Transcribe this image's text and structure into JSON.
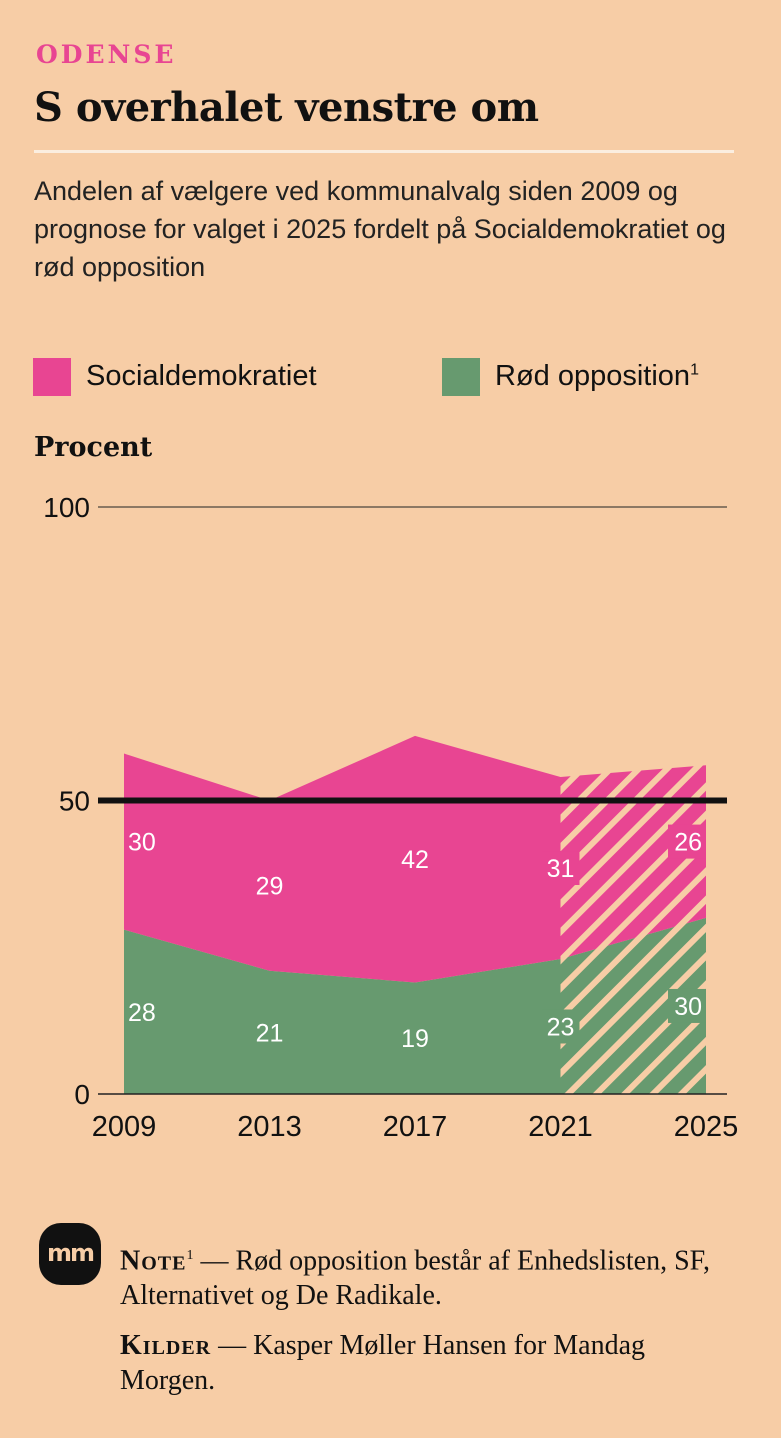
{
  "header": {
    "kicker": "ODENSE",
    "title": "S overhalet venstre om",
    "subtitle": "Andelen af vælgere ved kommunalvalg siden 2009 og prognose for valget i 2025 fordelt på Socialdemokratiet og rød opposition"
  },
  "legend": {
    "items": [
      {
        "label": "Socialdemokratiet",
        "color": "#e84592"
      },
      {
        "label": "Rød opposition",
        "sup": "1",
        "color": "#679a6f"
      }
    ]
  },
  "chart_data": {
    "type": "area",
    "stacked": true,
    "x": [
      2009,
      2013,
      2017,
      2021,
      2025
    ],
    "forecast_from": 2021,
    "forecast_style": "hatched",
    "series": [
      {
        "name": "Rød opposition",
        "values": [
          28,
          21,
          19,
          23,
          30
        ],
        "color": "#679a6f"
      },
      {
        "name": "Socialdemokratiet",
        "values": [
          30,
          29,
          42,
          31,
          26
        ],
        "color": "#e84592"
      }
    ],
    "ylabel": "Procent",
    "ylim": [
      0,
      100
    ],
    "yticks": [
      0,
      50,
      100
    ],
    "reference_line": 50,
    "grid": false
  },
  "footer": {
    "logo": "mm",
    "note_label": "Note",
    "note_sup": "1",
    "note_text": "— Rød opposition består af Enhedslisten, SF, Alternativet og De Radikale.",
    "sources_label": "Kilder",
    "sources_text": "— Kasper Møller Hansen for Mandag Morgen."
  }
}
